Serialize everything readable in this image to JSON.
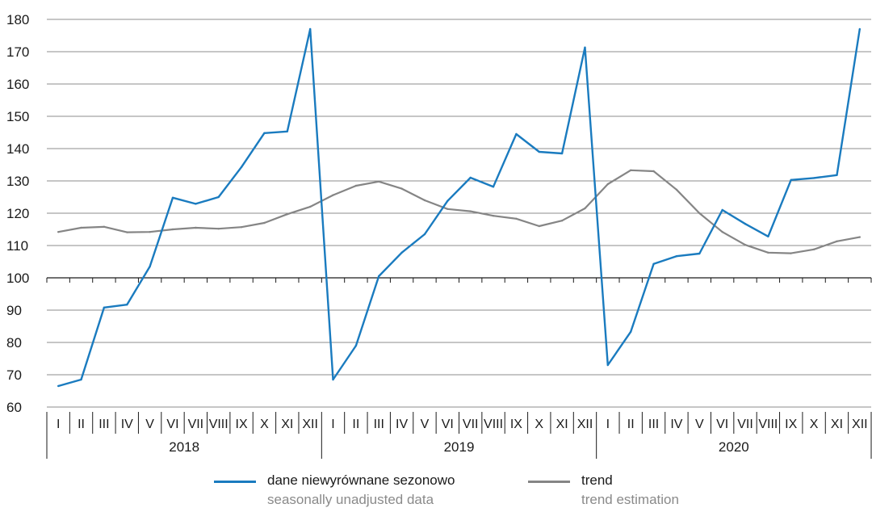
{
  "chart_data": {
    "type": "line",
    "ylim": [
      60,
      180
    ],
    "yticks": [
      60,
      70,
      80,
      90,
      100,
      110,
      120,
      130,
      140,
      150,
      160,
      170,
      180
    ],
    "grid": true,
    "baseline": 100,
    "months": [
      "I",
      "II",
      "III",
      "IV",
      "V",
      "VI",
      "VII",
      "VIII",
      "IX",
      "X",
      "XI",
      "XII"
    ],
    "years": [
      "2018",
      "2019",
      "2020"
    ],
    "series": [
      {
        "name": "dane niewyrównane sezonowo",
        "name_en": "seasonally unadjusted data",
        "color": "#1a7bbf",
        "values": [
          66.5,
          68.5,
          90.8,
          91.7,
          103.5,
          124.8,
          122.9,
          125.0,
          134.3,
          144.8,
          145.3,
          177.0,
          68.5,
          79.0,
          100.5,
          107.8,
          113.5,
          123.8,
          131.0,
          128.2,
          144.5,
          139.0,
          138.5,
          171.3,
          73.0,
          83.3,
          104.3,
          106.7,
          107.5,
          121.0,
          116.7,
          112.8,
          130.3,
          130.9,
          131.8,
          177.0
        ]
      },
      {
        "name": "trend",
        "name_en": "trend estimation",
        "color": "#858585",
        "values": [
          114.2,
          115.5,
          115.8,
          114.1,
          114.2,
          115.0,
          115.5,
          115.2,
          115.7,
          117.0,
          119.7,
          122.0,
          125.6,
          128.5,
          129.8,
          127.6,
          124.0,
          121.3,
          120.6,
          119.2,
          118.3,
          116.0,
          117.7,
          121.5,
          129.0,
          133.3,
          133.0,
          127.3,
          120.0,
          114.2,
          110.2,
          107.8,
          107.6,
          108.8,
          111.3,
          112.6
        ]
      }
    ]
  }
}
